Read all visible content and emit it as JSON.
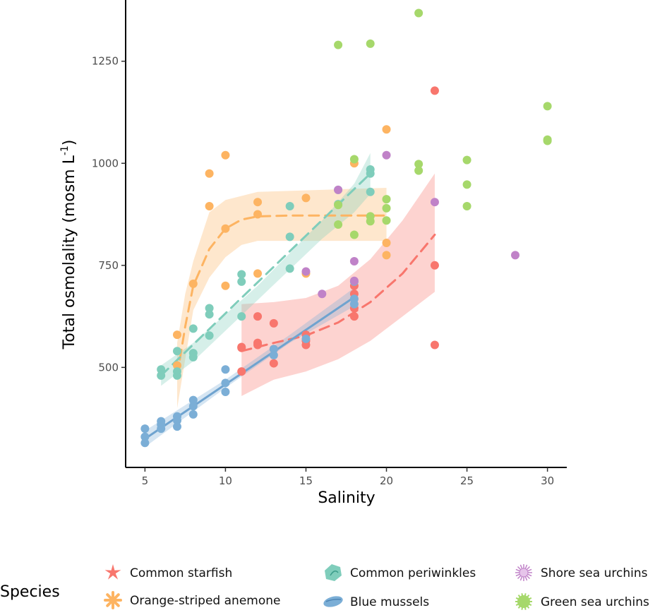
{
  "chart_data": {
    "type": "scatter",
    "xlabel": "Salinity",
    "ylabel": "Total osmolality (mosm L",
    "ylabel_sup": "-1",
    "ylabel_close": ")",
    "xlim": [
      3.8,
      31.2
    ],
    "ylim": [
      255,
      1400
    ],
    "xticks": [
      5,
      10,
      15,
      20,
      25,
      30
    ],
    "yticks": [
      500,
      750,
      1000,
      1250
    ],
    "legend": {
      "title": "Species",
      "position": "bottom"
    },
    "series": [
      {
        "name": "Common starfish",
        "color": "#f8766d",
        "icon": "starfish-icon",
        "points": [
          [
            11,
            550
          ],
          [
            11,
            548
          ],
          [
            11,
            490
          ],
          [
            12,
            625
          ],
          [
            12,
            560
          ],
          [
            12,
            555
          ],
          [
            13,
            608
          ],
          [
            13,
            545
          ],
          [
            13,
            510
          ],
          [
            15,
            580
          ],
          [
            15,
            565
          ],
          [
            15,
            555
          ],
          [
            18,
            700
          ],
          [
            18,
            680
          ],
          [
            18,
            645
          ],
          [
            18,
            625
          ],
          [
            23,
            1178
          ],
          [
            23,
            750
          ],
          [
            23,
            555
          ]
        ],
        "fit": {
          "style": "dashed",
          "points": [
            [
              11,
              540
            ],
            [
              13,
              560
            ],
            [
              15,
              578
            ],
            [
              17,
              610
            ],
            [
              19,
              660
            ],
            [
              21,
              730
            ],
            [
              23,
              825
            ]
          ]
        },
        "band": {
          "upper": [
            [
              11,
              655
            ],
            [
              13,
              660
            ],
            [
              15,
              670
            ],
            [
              17,
              700
            ],
            [
              19,
              765
            ],
            [
              21,
              860
            ],
            [
              23,
              975
            ]
          ],
          "lower": [
            [
              11,
              430
            ],
            [
              13,
              470
            ],
            [
              15,
              490
            ],
            [
              17,
              520
            ],
            [
              19,
              565
            ],
            [
              21,
              625
            ],
            [
              23,
              685
            ]
          ]
        }
      },
      {
        "name": "Orange-striped anemone",
        "color": "#fdb462",
        "icon": "anemone-icon",
        "points": [
          [
            7,
            580
          ],
          [
            7,
            505
          ],
          [
            8,
            705
          ],
          [
            9,
            975
          ],
          [
            9,
            895
          ],
          [
            10,
            1020
          ],
          [
            10,
            840
          ],
          [
            10,
            700
          ],
          [
            12,
            905
          ],
          [
            12,
            875
          ],
          [
            12,
            730
          ],
          [
            15,
            915
          ],
          [
            15,
            730
          ],
          [
            18,
            1000
          ],
          [
            20,
            1083
          ],
          [
            20,
            805
          ],
          [
            20,
            775
          ]
        ],
        "fit": {
          "style": "dashed",
          "points": [
            [
              7,
              480
            ],
            [
              7.5,
              600
            ],
            [
              8,
              700
            ],
            [
              9,
              790
            ],
            [
              10,
              840
            ],
            [
              11,
              862
            ],
            [
              12,
              870
            ],
            [
              14,
              872
            ],
            [
              16,
              872
            ],
            [
              18,
              872
            ],
            [
              20,
              872
            ]
          ]
        },
        "band": {
          "upper": [
            [
              7,
              560
            ],
            [
              7.5,
              680
            ],
            [
              8,
              760
            ],
            [
              9,
              880
            ],
            [
              10,
              910
            ],
            [
              12,
              930
            ],
            [
              16,
              935
            ],
            [
              20,
              940
            ]
          ],
          "lower": [
            [
              7,
              400
            ],
            [
              7.5,
              520
            ],
            [
              8,
              640
            ],
            [
              9,
              720
            ],
            [
              10,
              770
            ],
            [
              11,
              800
            ],
            [
              12,
              810
            ],
            [
              16,
              810
            ],
            [
              20,
              810
            ]
          ]
        }
      },
      {
        "name": "Common periwinkles",
        "color": "#7fcdbb",
        "icon": "periwinkle-icon",
        "points": [
          [
            6,
            495
          ],
          [
            6,
            480
          ],
          [
            7,
            540
          ],
          [
            7,
            490
          ],
          [
            7,
            480
          ],
          [
            8,
            595
          ],
          [
            8,
            535
          ],
          [
            8,
            525
          ],
          [
            9,
            645
          ],
          [
            9,
            630
          ],
          [
            9,
            578
          ],
          [
            11,
            728
          ],
          [
            11,
            710
          ],
          [
            11,
            625
          ],
          [
            14,
            895
          ],
          [
            14,
            820
          ],
          [
            14,
            742
          ],
          [
            17,
            935
          ],
          [
            17,
            900
          ],
          [
            19,
            985
          ],
          [
            19,
            975
          ],
          [
            19,
            930
          ]
        ],
        "fit": {
          "style": "dashed",
          "points": [
            [
              6,
              480
            ],
            [
              19,
              975
            ]
          ]
        },
        "band": {
          "upper": [
            [
              6,
              505
            ],
            [
              8,
              560
            ],
            [
              10,
              630
            ],
            [
              12,
              700
            ],
            [
              14,
              780
            ],
            [
              16,
              860
            ],
            [
              18,
              950
            ],
            [
              19,
              1025
            ]
          ],
          "lower": [
            [
              6,
              455
            ],
            [
              8,
              515
            ],
            [
              10,
              590
            ],
            [
              12,
              665
            ],
            [
              14,
              740
            ],
            [
              16,
              815
            ],
            [
              18,
              880
            ],
            [
              19,
              925
            ]
          ]
        }
      },
      {
        "name": "Blue mussels",
        "color": "#7baed6",
        "icon": "mussel-icon",
        "points": [
          [
            5,
            350
          ],
          [
            5,
            330
          ],
          [
            5,
            315
          ],
          [
            6,
            368
          ],
          [
            6,
            360
          ],
          [
            6,
            350
          ],
          [
            7,
            380
          ],
          [
            7,
            370
          ],
          [
            7,
            355
          ],
          [
            8,
            420
          ],
          [
            8,
            405
          ],
          [
            8,
            385
          ],
          [
            10,
            495
          ],
          [
            10,
            462
          ],
          [
            10,
            440
          ],
          [
            13,
            545
          ],
          [
            13,
            530
          ],
          [
            15,
            570
          ],
          [
            18,
            710
          ],
          [
            18,
            668
          ],
          [
            18,
            655
          ]
        ],
        "fit": {
          "style": "solid",
          "points": [
            [
              5,
              325
            ],
            [
              18,
              672
            ]
          ]
        },
        "band": {
          "upper": [
            [
              5,
              345
            ],
            [
              10,
              470
            ],
            [
              14,
              580
            ],
            [
              18,
              695
            ]
          ],
          "lower": [
            [
              5,
              305
            ],
            [
              10,
              450
            ],
            [
              14,
              560
            ],
            [
              18,
              650
            ]
          ]
        }
      },
      {
        "name": "Shore sea urchins",
        "color": "#c082c8",
        "icon": "shore-urchin-icon",
        "points": [
          [
            15,
            735
          ],
          [
            16,
            680
          ],
          [
            17,
            935
          ],
          [
            18,
            760
          ],
          [
            18,
            712
          ],
          [
            20,
            1020
          ],
          [
            23,
            905
          ],
          [
            28,
            775
          ]
        ]
      },
      {
        "name": "Green sea urchins",
        "color": "#a6d86b",
        "icon": "green-urchin-icon",
        "points": [
          [
            17,
            1290
          ],
          [
            17,
            898
          ],
          [
            17,
            850
          ],
          [
            18,
            1010
          ],
          [
            18,
            825
          ],
          [
            19,
            1293
          ],
          [
            19,
            870
          ],
          [
            19,
            858
          ],
          [
            20,
            912
          ],
          [
            20,
            890
          ],
          [
            20,
            860
          ],
          [
            22,
            1368
          ],
          [
            22,
            998
          ],
          [
            22,
            982
          ],
          [
            25,
            1008
          ],
          [
            25,
            948
          ],
          [
            25,
            895
          ],
          [
            30,
            1140
          ],
          [
            30,
            1058
          ],
          [
            30,
            1055
          ]
        ]
      }
    ]
  }
}
